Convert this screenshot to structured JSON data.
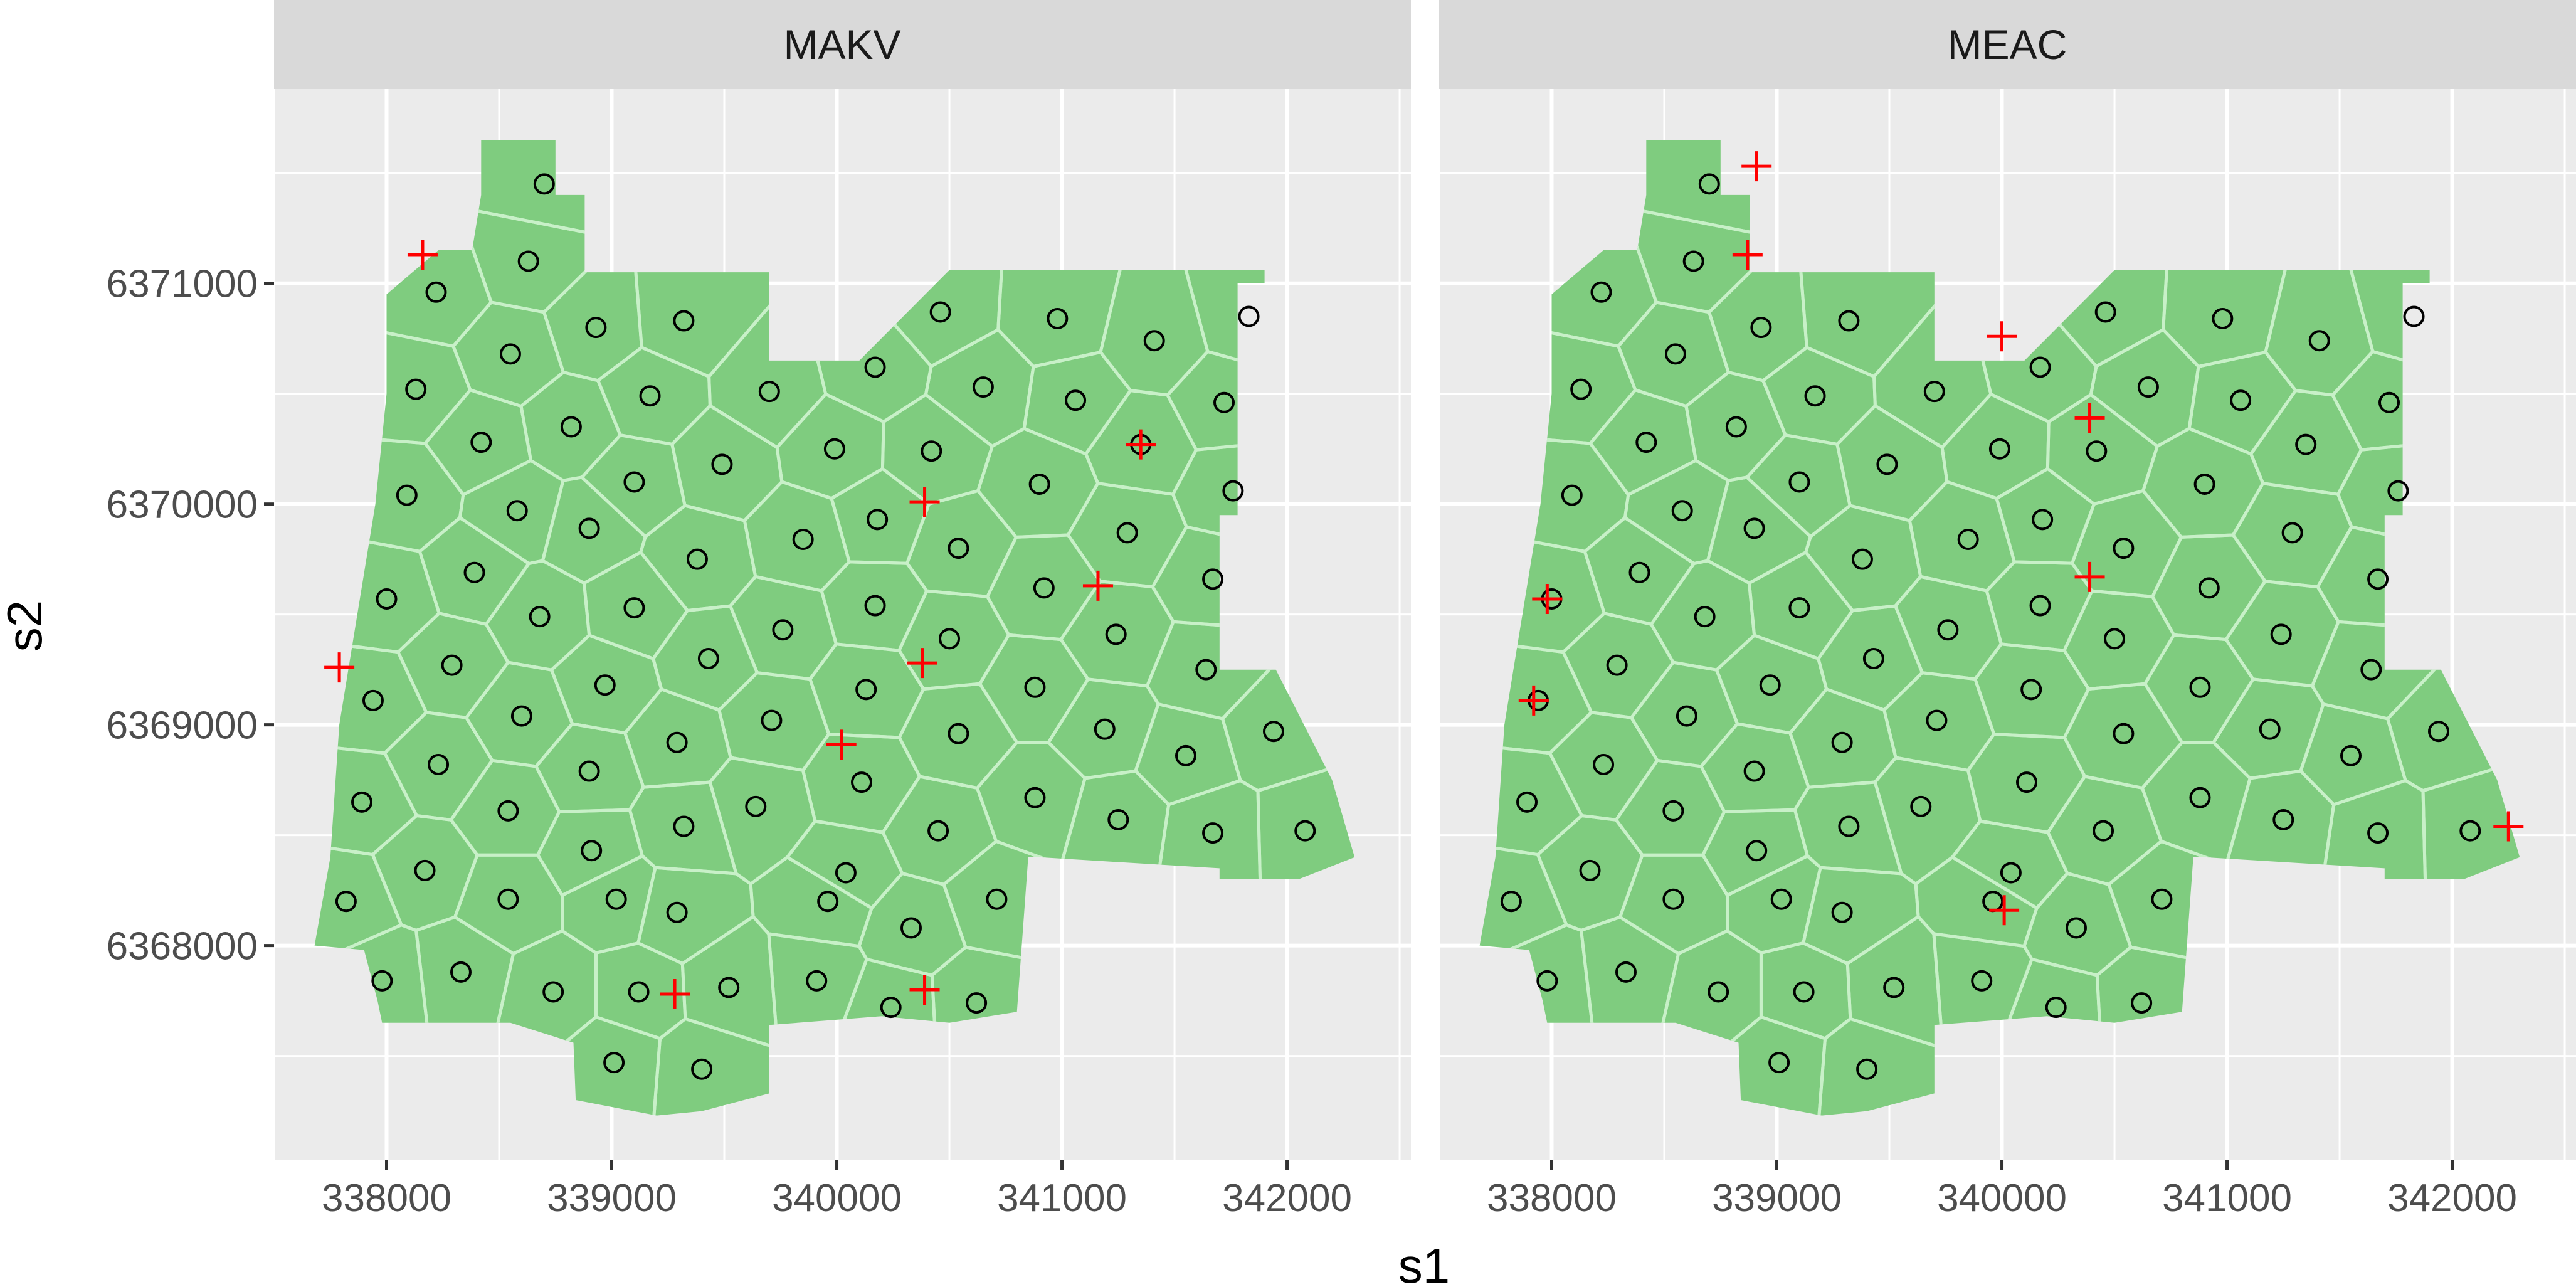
{
  "chart_data": {
    "type": "scatter",
    "title": "",
    "xlabel": "s1",
    "ylabel": "s2",
    "x_ticks": [
      338000,
      339000,
      340000,
      341000,
      342000
    ],
    "y_ticks": [
      6368000,
      6369000,
      6370000,
      6371000
    ],
    "x_tick_labels": [
      "338000",
      "339000",
      "340000",
      "341000",
      "342000"
    ],
    "y_tick_labels": [
      "6368000",
      "6369000",
      "6370000",
      "6371000"
    ],
    "xlim": [
      337500,
      342550
    ],
    "ylim": [
      6367030,
      6371880
    ],
    "grid": true,
    "colors": {
      "panel_bg": "#ebebeb",
      "grid_major": "#ffffff",
      "strip_bg": "#d9d9d9",
      "region_fill": "#7fcc7f",
      "cell_border": "#c8f0c8",
      "centroid_marker": "#000000",
      "sample_marker": "#ff0000"
    },
    "region_outline": [
      [
        338420,
        6371650
      ],
      [
        338750,
        6371650
      ],
      [
        338750,
        6371400
      ],
      [
        338880,
        6371400
      ],
      [
        338880,
        6371050
      ],
      [
        339700,
        6371050
      ],
      [
        339700,
        6370650
      ],
      [
        340100,
        6370650
      ],
      [
        340500,
        6371060
      ],
      [
        341900,
        6371060
      ],
      [
        341900,
        6371000
      ],
      [
        341780,
        6371000
      ],
      [
        341780,
        6369950
      ],
      [
        341700,
        6369950
      ],
      [
        341700,
        6369250
      ],
      [
        341950,
        6369250
      ],
      [
        342050,
        6369050
      ],
      [
        342200,
        6368750
      ],
      [
        342300,
        6368400
      ],
      [
        342050,
        6368300
      ],
      [
        341700,
        6368300
      ],
      [
        341700,
        6368350
      ],
      [
        340900,
        6368400
      ],
      [
        340850,
        6368400
      ],
      [
        340800,
        6367700
      ],
      [
        340500,
        6367650
      ],
      [
        340200,
        6367680
      ],
      [
        339700,
        6367640
      ],
      [
        339700,
        6367330
      ],
      [
        339400,
        6367250
      ],
      [
        339200,
        6367230
      ],
      [
        338840,
        6367300
      ],
      [
        338830,
        6367560
      ],
      [
        338550,
        6367650
      ],
      [
        338120,
        6367650
      ],
      [
        337980,
        6367650
      ],
      [
        337960,
        6367750
      ],
      [
        337900,
        6367980
      ],
      [
        337680,
        6368000
      ],
      [
        337750,
        6368400
      ],
      [
        337790,
        6369000
      ],
      [
        337870,
        6369500
      ],
      [
        337950,
        6370000
      ],
      [
        338000,
        6370500
      ],
      [
        338000,
        6370950
      ],
      [
        338230,
        6371150
      ],
      [
        338380,
        6371150
      ],
      [
        338420,
        6371400
      ]
    ],
    "centroids": [
      [
        338700,
        6371450
      ],
      [
        338630,
        6371100
      ],
      [
        338220,
        6370960
      ],
      [
        338550,
        6370680
      ],
      [
        338930,
        6370800
      ],
      [
        339320,
        6370830
      ],
      [
        338130,
        6370520
      ],
      [
        338420,
        6370280
      ],
      [
        338820,
        6370350
      ],
      [
        339170,
        6370490
      ],
      [
        339700,
        6370510
      ],
      [
        340170,
        6370620
      ],
      [
        340460,
        6370870
      ],
      [
        340980,
        6370840
      ],
      [
        341410,
        6370740
      ],
      [
        341830,
        6370850
      ],
      [
        340650,
        6370530
      ],
      [
        341060,
        6370470
      ],
      [
        341720,
        6370460
      ],
      [
        339490,
        6370180
      ],
      [
        339990,
        6370250
      ],
      [
        340420,
        6370240
      ],
      [
        341350,
        6370270
      ],
      [
        338090,
        6370040
      ],
      [
        338580,
        6369970
      ],
      [
        339100,
        6370100
      ],
      [
        338900,
        6369890
      ],
      [
        340180,
        6369930
      ],
      [
        340900,
        6370090
      ],
      [
        341760,
        6370060
      ],
      [
        339850,
        6369840
      ],
      [
        340540,
        6369800
      ],
      [
        341290,
        6369870
      ],
      [
        338390,
        6369690
      ],
      [
        339380,
        6369750
      ],
      [
        338000,
        6369570
      ],
      [
        338680,
        6369490
      ],
      [
        339100,
        6369530
      ],
      [
        339760,
        6369430
      ],
      [
        340170,
        6369540
      ],
      [
        340920,
        6369620
      ],
      [
        341670,
        6369660
      ],
      [
        338290,
        6369270
      ],
      [
        339430,
        6369300
      ],
      [
        340500,
        6369390
      ],
      [
        341240,
        6369410
      ],
      [
        337940,
        6369110
      ],
      [
        338970,
        6369180
      ],
      [
        340130,
        6369160
      ],
      [
        340880,
        6369170
      ],
      [
        341640,
        6369250
      ],
      [
        338600,
        6369040
      ],
      [
        339290,
        6368920
      ],
      [
        339710,
        6369020
      ],
      [
        340540,
        6368960
      ],
      [
        341190,
        6368980
      ],
      [
        341940,
        6368970
      ],
      [
        338230,
        6368820
      ],
      [
        338900,
        6368790
      ],
      [
        340110,
        6368740
      ],
      [
        341550,
        6368860
      ],
      [
        337890,
        6368650
      ],
      [
        338540,
        6368610
      ],
      [
        339640,
        6368630
      ],
      [
        340880,
        6368670
      ],
      [
        339320,
        6368540
      ],
      [
        340450,
        6368520
      ],
      [
        341250,
        6368570
      ],
      [
        341670,
        6368510
      ],
      [
        342080,
        6368520
      ],
      [
        338170,
        6368340
      ],
      [
        338910,
        6368430
      ],
      [
        340040,
        6368330
      ],
      [
        337820,
        6368200
      ],
      [
        338540,
        6368210
      ],
      [
        339020,
        6368210
      ],
      [
        339960,
        6368200
      ],
      [
        339290,
        6368150
      ],
      [
        340330,
        6368080
      ],
      [
        340710,
        6368210
      ],
      [
        337980,
        6367840
      ],
      [
        338330,
        6367880
      ],
      [
        338740,
        6367790
      ],
      [
        339120,
        6367790
      ],
      [
        339520,
        6367810
      ],
      [
        339910,
        6367840
      ],
      [
        340240,
        6367720
      ],
      [
        340620,
        6367740
      ],
      [
        339010,
        6367470
      ],
      [
        339400,
        6367440
      ]
    ],
    "series": [
      {
        "name": "MAKV",
        "samples": [
          [
            338160,
            6371130
          ],
          [
            340390,
            6370010
          ],
          [
            341350,
            6370270
          ],
          [
            341160,
            6369630
          ],
          [
            337790,
            6369260
          ],
          [
            340380,
            6369280
          ],
          [
            340020,
            6368910
          ],
          [
            339280,
            6367780
          ],
          [
            340390,
            6367800
          ]
        ]
      },
      {
        "name": "MEAC",
        "samples": [
          [
            338910,
            6371530
          ],
          [
            338870,
            6371130
          ],
          [
            340000,
            6370760
          ],
          [
            340390,
            6370390
          ],
          [
            340390,
            6369670
          ],
          [
            337980,
            6369570
          ],
          [
            337920,
            6369110
          ],
          [
            342250,
            6368540
          ],
          [
            340010,
            6368160
          ]
        ]
      }
    ]
  }
}
